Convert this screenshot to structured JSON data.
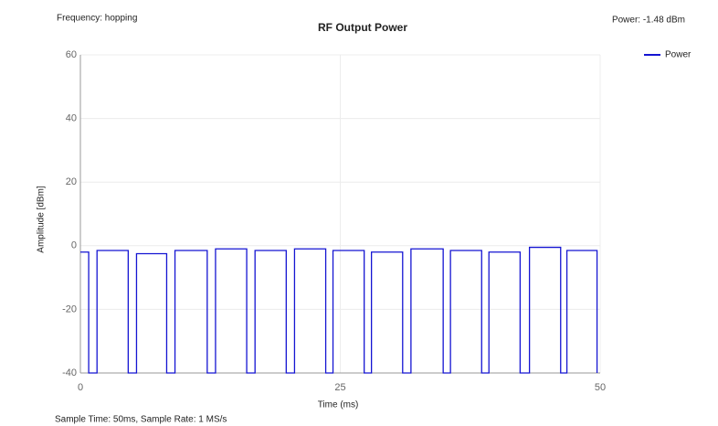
{
  "chart_data": {
    "type": "line",
    "title": "RF Output Power",
    "subtitle": "Frequency: hopping",
    "annotation": "Power: -1.48 dBm",
    "footer": "Sample Time: 50ms,  Sample Rate: 1 MS/s",
    "xlabel": "Time (ms)",
    "ylabel": "Amplitude [dBm]",
    "x": [
      0,
      0.8,
      0.8,
      1.6,
      1.6,
      4.6,
      4.6,
      5.4,
      5.4,
      8.3,
      8.3,
      9.1,
      9.1,
      12.2,
      12.2,
      13.0,
      13.0,
      16.0,
      16.0,
      16.8,
      16.8,
      19.8,
      19.8,
      20.6,
      20.6,
      23.6,
      23.6,
      24.3,
      24.3,
      27.3,
      27.3,
      28.0,
      28.0,
      31.0,
      31.0,
      31.8,
      31.8,
      34.9,
      34.9,
      35.6,
      35.6,
      38.6,
      38.6,
      39.3,
      39.3,
      42.3,
      42.3,
      43.2,
      43.2,
      46.2,
      46.2,
      46.8,
      46.8,
      49.7,
      49.7
    ],
    "series": [
      {
        "name": "Power",
        "color": "#1414d2",
        "values": [
          -2,
          -2,
          -40,
          -40,
          -1.5,
          -1.5,
          -40,
          -40,
          -2.5,
          -2.5,
          -40,
          -40,
          -1.5,
          -1.5,
          -40,
          -40,
          -1,
          -1,
          -40,
          -40,
          -1.5,
          -1.5,
          -40,
          -40,
          -1,
          -1,
          -40,
          -40,
          -1.5,
          -1.5,
          -40,
          -40,
          -2,
          -2,
          -40,
          -40,
          -1,
          -1,
          -40,
          -40,
          -1.5,
          -1.5,
          -40,
          -40,
          -2,
          -2,
          -40,
          -40,
          -0.5,
          -0.5,
          -40,
          -40,
          -1.5,
          -1.5,
          -40
        ]
      }
    ],
    "xlim": [
      0,
      50
    ],
    "xticks": [
      0,
      25,
      50
    ],
    "ylim": [
      -40,
      60
    ],
    "yticks": [
      -40,
      -20,
      0,
      20,
      40,
      60
    ],
    "grid": true,
    "legend": "top-right"
  }
}
